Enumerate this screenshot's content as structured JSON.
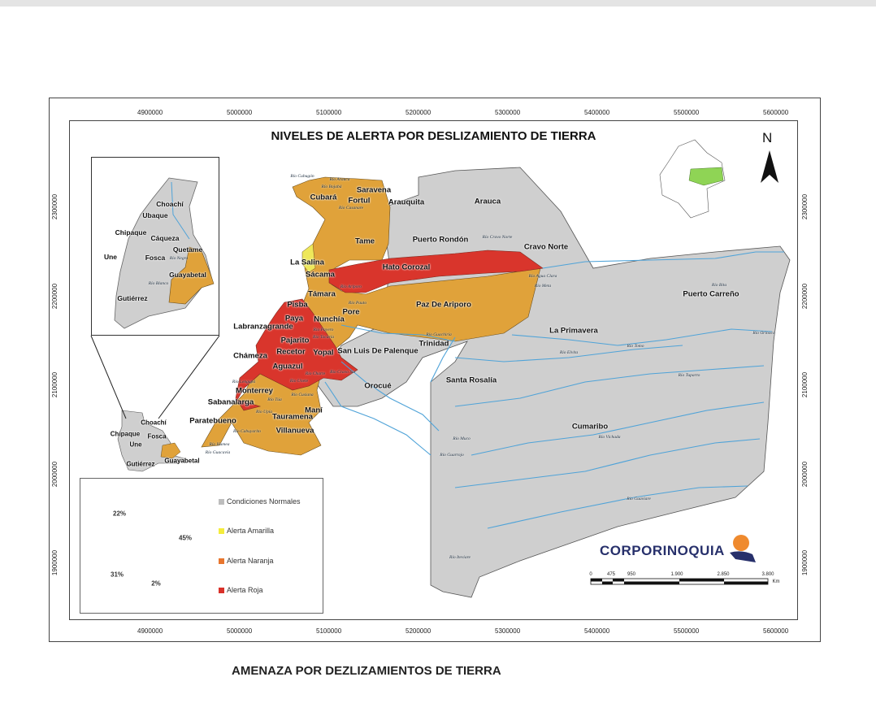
{
  "title": "NIVELES DE ALERTA POR DESLIZAMIENTO DE TIERRA",
  "caption": "AMENAZA POR DEZLIZAMIENTOS DE TIERRA",
  "north_label": "N",
  "brand": "CORPORINOQUIA",
  "x_ticks": [
    "4900000",
    "5000000",
    "5100000",
    "5200000",
    "5300000",
    "5400000",
    "5500000",
    "5600000"
  ],
  "y_ticks": [
    "2300000",
    "2200000",
    "2100000",
    "2000000",
    "1900000"
  ],
  "scale": {
    "labels": [
      "0",
      "475",
      "950",
      "1.900",
      "2.850",
      "3.800"
    ],
    "unit": "Km"
  },
  "municipalities": [
    "Saravena",
    "Cubará",
    "Fortul",
    "Arauquita",
    "Arauca",
    "Tame",
    "Puerto Rondón",
    "Cravo Norte",
    "La Salina",
    "Hato Corozal",
    "Sácama",
    "Támara",
    "Paz De Ariporo",
    "Pisba",
    "Paya",
    "Nunchía",
    "Pore",
    "Labranzagrande",
    "Pajarito",
    "La Primavera",
    "Puerto Carreño",
    "Recetor",
    "Yopal",
    "San Luis De Palenque",
    "Trinidad",
    "Chámeza",
    "Aguazul",
    "Orocué",
    "Santa Rosalía",
    "Monterrey",
    "Sabanalarga",
    "Maní",
    "Tauramena",
    "Paratebueno",
    "Villanueva",
    "Cumaribo",
    "Choachí",
    "Chipaque",
    "Fosca",
    "Une",
    "Guayabetal",
    "Gutiérrez"
  ],
  "inset_municipalities": [
    "Choachí",
    "Ubaque",
    "Chipaque",
    "Cáqueza",
    "Quetame",
    "Une",
    "Fosca",
    "Guayabetal",
    "Gutiérrez"
  ],
  "rivers": [
    "Río Cubugón",
    "Río Arauca",
    "Río Bojabá",
    "Río Casanare",
    "Río Cravo Norte",
    "Río Ariporo",
    "Río Pauto",
    "Río Guachiría",
    "Río Payero",
    "Río Tocaría",
    "Río Charte",
    "Río Cravo Sur",
    "Río Unete",
    "Río Cusiana",
    "Río Túa",
    "Río Upía",
    "Río Meta",
    "Río Agua Clara",
    "Río Bita",
    "Río Orinoco",
    "Río Tomo",
    "Río Elvita",
    "Río Tuparro",
    "Río Vichada",
    "Río Muco",
    "Río Guarrojo",
    "Río Guaviare",
    "Río Iteviare",
    "Río Negro",
    "Río Blanco",
    "Río Humea",
    "Río Guacavía",
    "Río Cabuyarito",
    "Río Lengupá"
  ],
  "colors": {
    "normal": "#c8c8c8",
    "amarilla": "#f2ec4a",
    "naranja": "#e2a43c",
    "roja": "#d9352c",
    "river": "#4fa3d8"
  },
  "chart_data": {
    "type": "pie",
    "donut": true,
    "categories": [
      "Condiciones Normales",
      "Alerta Amarilla",
      "Alerta Naranja",
      "Alerta Roja"
    ],
    "values": [
      45,
      2,
      31,
      22
    ],
    "labels": [
      "45%",
      "2%",
      "31%",
      "22%"
    ],
    "colors": [
      "#bdbdbd",
      "#f4ec3c",
      "#e8762e",
      "#d9312a"
    ],
    "legend_position": "right"
  }
}
